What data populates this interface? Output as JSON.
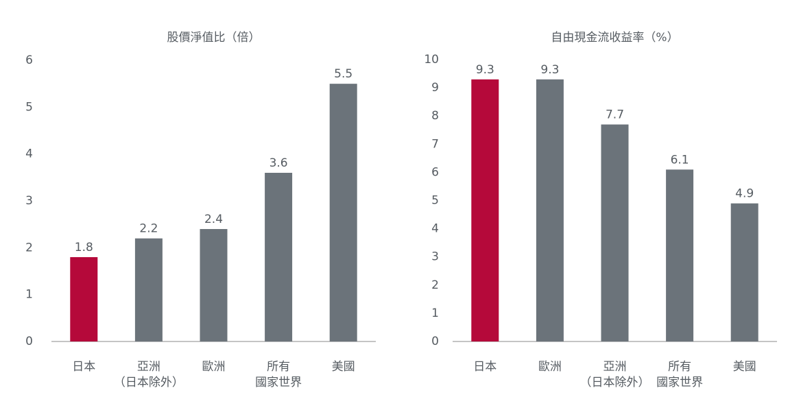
{
  "chart_data": [
    {
      "type": "bar",
      "title": "股價淨值比（倍）",
      "categories": [
        [
          "日本"
        ],
        [
          "亞洲",
          "（日本除外）"
        ],
        [
          "歐洲"
        ],
        [
          "所有",
          "國家世界"
        ],
        [
          "美國"
        ]
      ],
      "values": [
        1.8,
        2.2,
        2.4,
        3.6,
        5.5
      ],
      "colors": [
        "#b5093a",
        "#6b737a",
        "#6b737a",
        "#6b737a",
        "#6b737a"
      ],
      "ylim": [
        0,
        6
      ],
      "yticks": [
        0,
        1,
        2,
        3,
        4,
        5,
        6
      ]
    },
    {
      "type": "bar",
      "title": "自由現金流收益率（%）",
      "categories": [
        [
          "日本"
        ],
        [
          "歐洲"
        ],
        [
          "亞洲",
          "（日本除外）"
        ],
        [
          "所有",
          "國家世界"
        ],
        [
          "美國"
        ]
      ],
      "values": [
        9.3,
        9.3,
        7.7,
        6.1,
        4.9
      ],
      "colors": [
        "#b5093a",
        "#6b737a",
        "#6b737a",
        "#6b737a",
        "#6b737a"
      ],
      "ylim": [
        0,
        10
      ],
      "yticks": [
        0,
        1,
        2,
        3,
        4,
        5,
        6,
        7,
        8,
        9,
        10
      ]
    }
  ]
}
